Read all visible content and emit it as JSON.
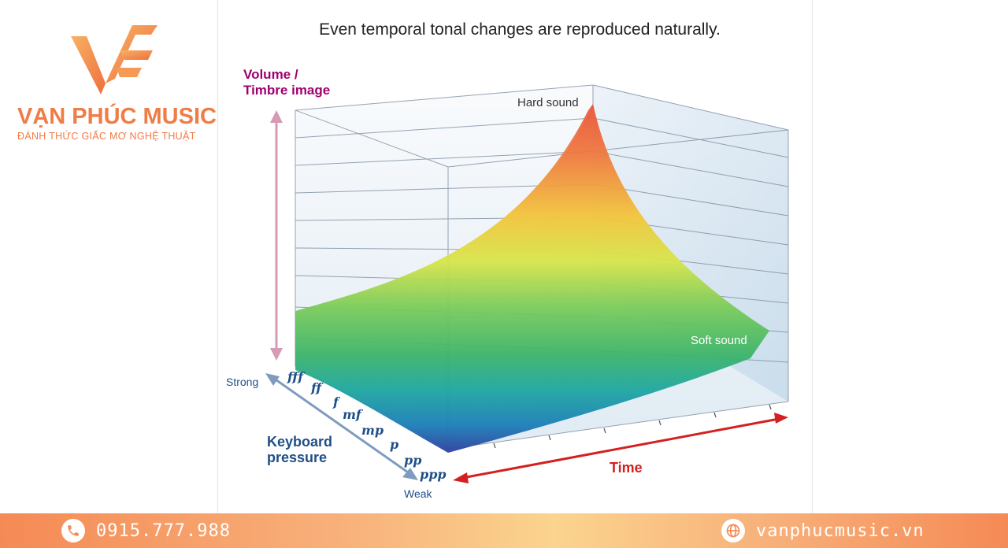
{
  "brand": {
    "name": "VẠN PHÚC MUSIC",
    "tagline": "ĐÁNH THỨC GIẤC MƠ NGHỆ THUẬT",
    "primary_color": "#f07c46",
    "logo_icon": "vf-logo-icon"
  },
  "diagram": {
    "title": "Even temporal tonal changes are reproduced naturally.",
    "y_axis_label_line1": "Volume /",
    "y_axis_label_line2": "Timbre image",
    "y_axis_color": "#a0006f",
    "hard_sound_label": "Hard sound",
    "soft_sound_label": "Soft sound",
    "time_label": "Time",
    "time_color": "#d42020",
    "keyboard_label_line1": "Keyboard",
    "keyboard_label_line2": "pressure",
    "keyboard_color": "#1f4f86",
    "strong_label": "Strong",
    "weak_label": "Weak",
    "dynamics": [
      "fff",
      "ff",
      "f",
      "mf",
      "mp",
      "p",
      "pp",
      "ppp"
    ]
  },
  "footer": {
    "phone": "0915.777.988",
    "phone_icon": "phone-icon",
    "website": "vanphucmusic.vn",
    "website_icon": "globe-icon"
  }
}
